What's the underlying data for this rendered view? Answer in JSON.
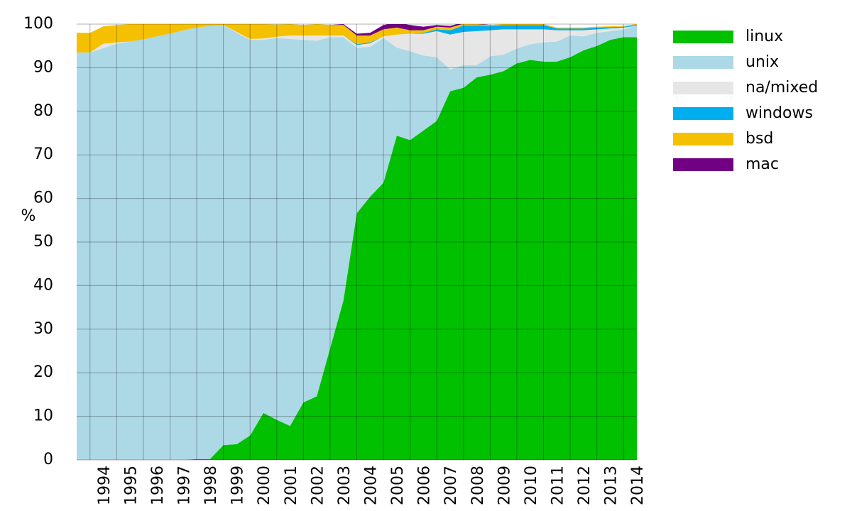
{
  "chart_data": {
    "type": "stacked_area",
    "y_label": "%",
    "categories": [
      null,
      "1994",
      null,
      "1995",
      null,
      "1996",
      null,
      "1997",
      null,
      "1998",
      null,
      "1999",
      null,
      "2000",
      null,
      "2001",
      null,
      "2002",
      null,
      "2003",
      null,
      "2004",
      null,
      "2005",
      null,
      "2006",
      null,
      "2007",
      null,
      "2008",
      null,
      "2009",
      null,
      "2010",
      null,
      "2011",
      null,
      "2012",
      null,
      "2013",
      null,
      "2014",
      null
    ],
    "ylim": [
      0,
      100
    ],
    "yticks": [
      0,
      10,
      20,
      30,
      40,
      50,
      60,
      70,
      80,
      90,
      100
    ],
    "grid": true,
    "legend": "right",
    "series": [
      {
        "name": "linux",
        "color": "#00c000",
        "values": [
          0,
          0,
          0,
          0,
          0,
          0,
          0,
          0,
          0,
          0.2,
          0.2,
          3.4,
          3.6,
          5.6,
          10.8,
          9.2,
          7.8,
          13.2,
          14.6,
          25.6,
          36.6,
          56.6,
          60.4,
          63.6,
          74.4,
          73.4,
          75.6,
          77.8,
          84.6,
          85.4,
          87.8,
          88.4,
          89.2,
          91,
          91.8,
          91.4,
          91.4,
          92.4,
          94,
          95,
          96.4,
          97,
          97
        ]
      },
      {
        "name": "unix",
        "color": "#add8e6",
        "values": [
          93.5,
          93.5,
          94.5,
          95.5,
          96,
          96.5,
          97.2,
          97.8,
          98.6,
          99,
          99.4,
          96.4,
          94.4,
          90.8,
          85.6,
          87.6,
          88.8,
          83.2,
          81.6,
          71.4,
          60.4,
          38,
          34.4,
          33.2,
          20.2,
          20.4,
          17.2,
          14.6,
          5,
          5.2,
          2.8,
          4.2,
          3.8,
          3.4,
          3.6,
          4.4,
          4.6,
          5,
          3.2,
          3,
          2,
          1.8,
          2.6
        ]
      },
      {
        "name": "na/mixed",
        "color": "#e6e6e6",
        "values": [
          0,
          0,
          1,
          0.3,
          0,
          0,
          0,
          0,
          0,
          0,
          0,
          0,
          0.2,
          0.2,
          0.3,
          0.3,
          0.8,
          1,
          1.2,
          0.4,
          0.4,
          0.6,
          0.8,
          0.4,
          3,
          4,
          5,
          6,
          8,
          7.6,
          7.8,
          6,
          5.8,
          4.4,
          3.4,
          3,
          2.6,
          1.2,
          1.4,
          0.8,
          0.6,
          0.4,
          0
        ]
      },
      {
        "name": "windows",
        "color": "#00aeef",
        "values": [
          0,
          0,
          0,
          0,
          0,
          0,
          0,
          0,
          0,
          0,
          0,
          0,
          0,
          0,
          0,
          0,
          0,
          0,
          0,
          0,
          0,
          0.2,
          0.2,
          0,
          0,
          0,
          0.2,
          0.4,
          1,
          1.5,
          1.3,
          1,
          1,
          1,
          1,
          1,
          0.4,
          0.4,
          0.4,
          0.4,
          0.3,
          0.2,
          0.2
        ]
      },
      {
        "name": "bsd",
        "color": "#f5c000",
        "values": [
          4.5,
          4.5,
          4,
          4,
          4,
          3.5,
          2.8,
          2.2,
          1.4,
          0.8,
          0.4,
          0.2,
          1.8,
          3.4,
          3.3,
          2.8,
          2.6,
          2.4,
          2.6,
          2.4,
          2.4,
          2,
          1.6,
          1.6,
          1.6,
          0.8,
          0.6,
          0.6,
          0.6,
          0.4,
          0.3,
          0.2,
          0.2,
          0.2,
          0.2,
          0.2,
          0.2,
          0.2,
          0.2,
          0.2,
          0.2,
          0.2,
          0.2
        ]
      },
      {
        "name": "mac",
        "color": "#720082",
        "values": [
          0,
          0,
          0,
          0,
          0,
          0,
          0,
          0,
          0,
          0,
          0,
          0,
          0,
          0,
          0,
          0,
          0,
          0,
          0,
          0,
          0.2,
          0.4,
          0.6,
          1,
          1.2,
          1.2,
          0.8,
          0.4,
          0.4,
          0.3,
          0.2,
          0,
          0,
          0,
          0,
          0,
          0,
          0,
          0,
          0,
          0,
          0,
          0
        ]
      }
    ]
  }
}
